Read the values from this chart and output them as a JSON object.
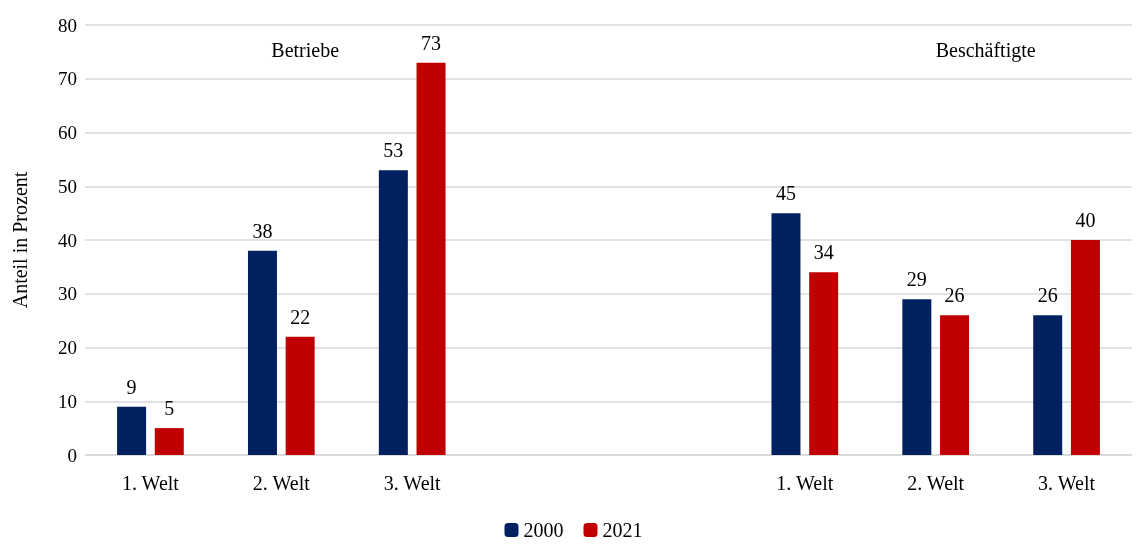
{
  "chart_data": {
    "type": "bar",
    "ylabel": "Anteil in Prozent",
    "categories": [
      "1. Welt",
      "2. Welt",
      "3. Welt",
      null,
      null,
      "1. Welt",
      "2. Welt",
      "3. Welt"
    ],
    "series": [
      {
        "name": "2000",
        "color": "#002060",
        "values": [
          9,
          38,
          53,
          null,
          null,
          45,
          29,
          26
        ]
      },
      {
        "name": "2021",
        "color": "#c00000",
        "values": [
          5,
          22,
          73,
          null,
          null,
          34,
          26,
          40
        ]
      }
    ],
    "ylim": [
      0,
      80
    ],
    "yticks": [
      0,
      10,
      20,
      30,
      40,
      50,
      60,
      70,
      80
    ],
    "grid": "y",
    "legend": "bottom",
    "data_labels": true,
    "annotations": [
      "Betriebe",
      "Beschäftigte"
    ]
  }
}
